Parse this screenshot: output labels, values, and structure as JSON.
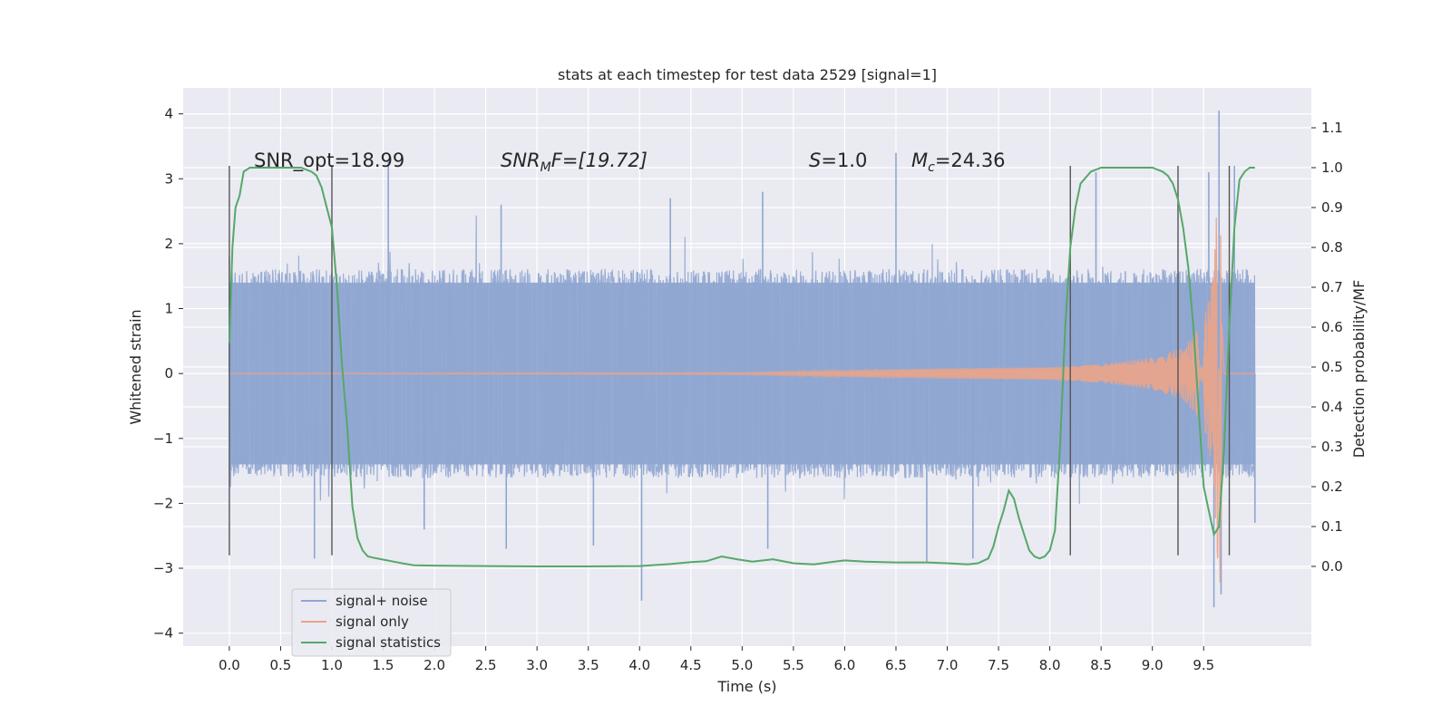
{
  "chart_data": {
    "type": "line",
    "title": "stats at each timestep for test data 2529 [signal=1]",
    "xlabel": "Time (s)",
    "ylabel": "Whitened strain",
    "y2label": "Detection probability/MF",
    "xlim": [
      -0.45,
      10.55
    ],
    "ylim": [
      -4.2,
      4.4
    ],
    "y2lim": [
      -0.2,
      1.2
    ],
    "xticks": [
      "0.0",
      "0.5",
      "1.0",
      "1.5",
      "2.0",
      "2.5",
      "3.0",
      "3.5",
      "4.0",
      "4.5",
      "5.0",
      "5.5",
      "6.0",
      "6.5",
      "7.0",
      "7.5",
      "8.0",
      "8.5",
      "9.0",
      "9.5"
    ],
    "yticks": [
      "4",
      "3",
      "2",
      "1",
      "0",
      "−1",
      "−2",
      "−3",
      "−4"
    ],
    "y2ticks": [
      "1.1",
      "1.0",
      "0.9",
      "0.8",
      "0.7",
      "0.6",
      "0.5",
      "0.4",
      "0.3",
      "0.2",
      "0.1",
      "0.0"
    ],
    "grid": true,
    "legend_position": "lower-left",
    "legend": [
      {
        "label": "signal+ noise",
        "color": "#8fa6d1"
      },
      {
        "label": "signal only",
        "color": "#e8a48c"
      },
      {
        "label": "signal statistics",
        "color": "#55a868"
      }
    ],
    "annotations": {
      "snr_opt": "SNR_opt=18.99",
      "snr_mf_base": "SNR",
      "snr_mf_sub": "M",
      "snr_mf_rest": "F=[19.72]",
      "s_var": "S",
      "s_rest": "=1.0",
      "mc_base": "M",
      "mc_sub": "c",
      "mc_rest": "=24.36"
    },
    "noise_series": {
      "name": "signal+ noise",
      "x_range": [
        0.0,
        10.0
      ],
      "band": [
        -1.4,
        1.4
      ],
      "typical_extremes": [
        -2.5,
        2.6
      ],
      "spikes": [
        {
          "x": 0.0,
          "y": 1.8
        },
        {
          "x": 0.83,
          "y": -2.85
        },
        {
          "x": 1.55,
          "y": 3.3
        },
        {
          "x": 1.9,
          "y": -2.4
        },
        {
          "x": 2.65,
          "y": 2.6
        },
        {
          "x": 2.7,
          "y": -2.7
        },
        {
          "x": 3.55,
          "y": -2.65
        },
        {
          "x": 4.02,
          "y": -3.5
        },
        {
          "x": 4.3,
          "y": 2.7
        },
        {
          "x": 5.2,
          "y": 2.8
        },
        {
          "x": 5.25,
          "y": -2.7
        },
        {
          "x": 6.5,
          "y": 3.4
        },
        {
          "x": 6.8,
          "y": -2.9
        },
        {
          "x": 7.25,
          "y": -2.85
        },
        {
          "x": 8.45,
          "y": 3.1
        },
        {
          "x": 9.55,
          "y": 3.1
        },
        {
          "x": 9.6,
          "y": -3.6
        },
        {
          "x": 9.65,
          "y": 4.05
        },
        {
          "x": 9.67,
          "y": -3.4
        },
        {
          "x": 9.8,
          "y": 3.2
        },
        {
          "x": 10.0,
          "y": -2.3
        }
      ]
    },
    "signal_series": {
      "name": "signal only",
      "x_range": [
        0.0,
        10.0
      ],
      "envelope": [
        {
          "x": 0.0,
          "amp": 0.0
        },
        {
          "x": 5.0,
          "amp": 0.015
        },
        {
          "x": 6.0,
          "amp": 0.05
        },
        {
          "x": 7.0,
          "amp": 0.08
        },
        {
          "x": 8.0,
          "amp": 0.1
        },
        {
          "x": 8.5,
          "amp": 0.14
        },
        {
          "x": 9.0,
          "amp": 0.25
        },
        {
          "x": 9.3,
          "amp": 0.4
        },
        {
          "x": 9.5,
          "amp": 0.8
        },
        {
          "x": 9.6,
          "amp": 1.6
        },
        {
          "x": 9.64,
          "amp": 3.2
        },
        {
          "x": 9.66,
          "amp": 3.4
        },
        {
          "x": 9.7,
          "amp": 0.0
        },
        {
          "x": 10.0,
          "amp": 0.0
        }
      ]
    },
    "statistics_series": {
      "name": "signal statistics",
      "x": [
        0.0,
        0.03,
        0.06,
        0.1,
        0.14,
        0.2,
        0.3,
        0.4,
        0.5,
        0.6,
        0.7,
        0.8,
        0.85,
        0.9,
        0.95,
        1.0,
        1.05,
        1.1,
        1.15,
        1.2,
        1.25,
        1.3,
        1.35,
        1.4,
        1.5,
        1.6,
        1.7,
        1.8,
        2.0,
        2.5,
        3.0,
        3.5,
        4.0,
        4.3,
        4.5,
        4.65,
        4.8,
        4.95,
        5.1,
        5.3,
        5.5,
        5.7,
        5.9,
        6.0,
        6.2,
        6.5,
        6.8,
        7.0,
        7.2,
        7.3,
        7.4,
        7.45,
        7.5,
        7.55,
        7.6,
        7.65,
        7.7,
        7.75,
        7.8,
        7.85,
        7.9,
        7.95,
        8.0,
        8.05,
        8.1,
        8.15,
        8.2,
        8.25,
        8.3,
        8.4,
        8.5,
        8.7,
        9.0,
        9.1,
        9.15,
        9.2,
        9.25,
        9.3,
        9.35,
        9.4,
        9.45,
        9.5,
        9.55,
        9.6,
        9.65,
        9.7,
        9.75,
        9.8,
        9.85,
        9.9,
        9.95,
        10.0
      ],
      "y": [
        0.56,
        0.8,
        0.9,
        0.93,
        0.99,
        1.0,
        1.0,
        1.0,
        1.0,
        1.0,
        1.0,
        0.99,
        0.98,
        0.95,
        0.9,
        0.85,
        0.7,
        0.5,
        0.35,
        0.15,
        0.07,
        0.04,
        0.025,
        0.022,
        0.017,
        0.012,
        0.007,
        0.003,
        0.002,
        0.001,
        0.0,
        0.0,
        0.001,
        0.006,
        0.011,
        0.013,
        0.025,
        0.018,
        0.012,
        0.018,
        0.008,
        0.005,
        0.012,
        0.015,
        0.012,
        0.01,
        0.01,
        0.008,
        0.005,
        0.008,
        0.02,
        0.05,
        0.1,
        0.14,
        0.19,
        0.17,
        0.12,
        0.08,
        0.04,
        0.025,
        0.02,
        0.025,
        0.04,
        0.09,
        0.3,
        0.6,
        0.8,
        0.9,
        0.96,
        0.99,
        1.0,
        1.0,
        1.0,
        0.99,
        0.98,
        0.96,
        0.92,
        0.85,
        0.75,
        0.6,
        0.4,
        0.2,
        0.14,
        0.08,
        0.1,
        0.3,
        0.6,
        0.85,
        0.97,
        0.99,
        1.0,
        1.0
      ]
    },
    "vertical_markers": {
      "x": [
        0.0,
        1.0,
        8.2,
        9.25,
        9.75
      ],
      "y_from": -2.8,
      "y_to": 3.2
    }
  }
}
